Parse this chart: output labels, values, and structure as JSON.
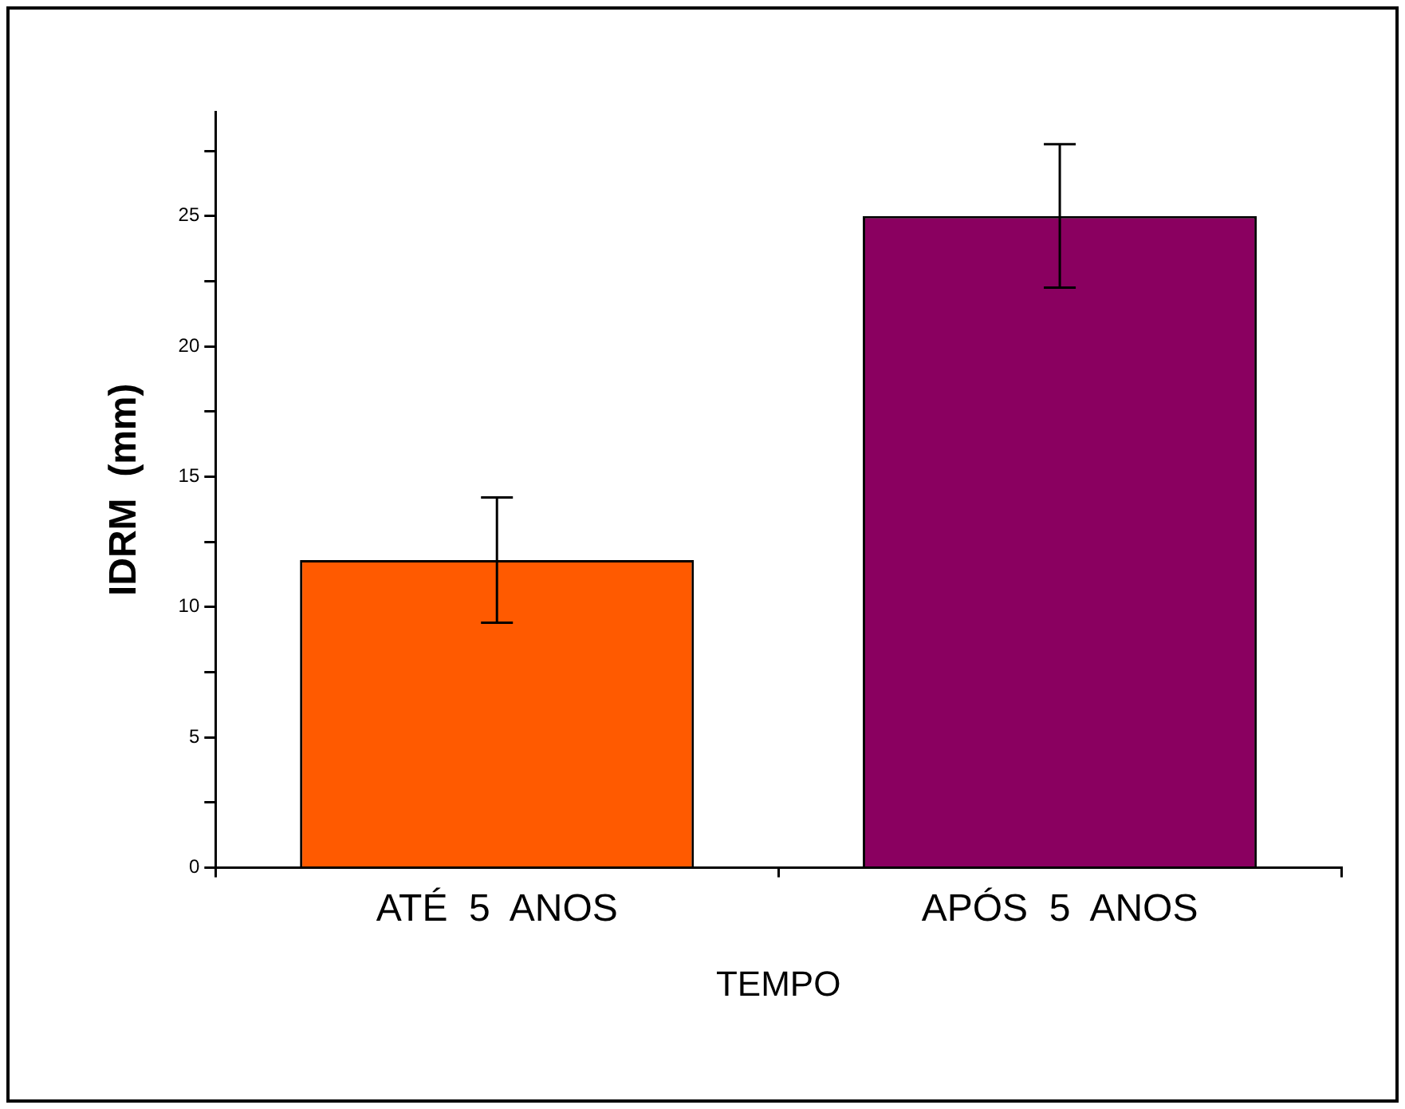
{
  "chart_data": {
    "type": "bar",
    "xlabel": "TEMPO",
    "ylabel": "IDRM  (mm)",
    "categories": [
      "ATÉ  5  ANOS",
      "APÓS  5  ANOS"
    ],
    "values": [
      11.8,
      25.0
    ],
    "errors": [
      2.4,
      2.75
    ],
    "colors": [
      "#ff5a00",
      "#8a0060"
    ],
    "ylim": [
      0,
      29
    ],
    "yticks": [
      0,
      {
        "value": 2.5,
        "label": null
      },
      5,
      {
        "value": 7.5,
        "label": null
      },
      10,
      {
        "value": 12.5,
        "label": null
      },
      15,
      {
        "value": 17.5,
        "label": null
      },
      20,
      {
        "value": 22.5,
        "label": null
      },
      25,
      {
        "value": 27.5,
        "label": null
      }
    ],
    "grid": false,
    "legend": false
  }
}
